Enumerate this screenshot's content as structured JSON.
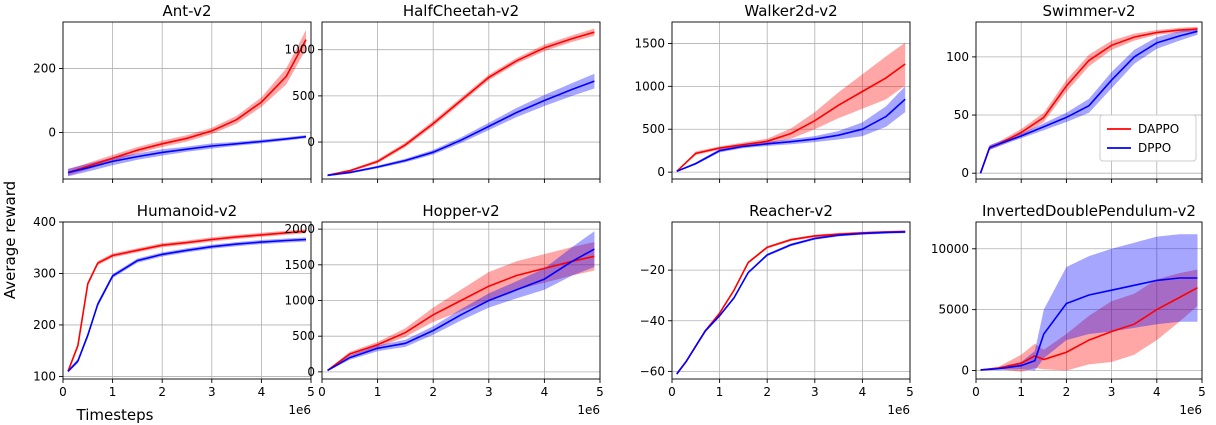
{
  "figure": {
    "ylabel": "Average reward",
    "xlabel": "Timesteps",
    "x_offset_label": "1e6",
    "legend": {
      "placement": "lower-right",
      "panel_index": 3,
      "entries": [
        "DAPPO",
        "DPPO"
      ]
    },
    "colors": {
      "DAPPO": "#ff0000",
      "DPPO": "#0000ff",
      "grid": "#b0b0b0"
    }
  },
  "chart_data": [
    {
      "type": "line",
      "title": "Ant-v2",
      "xlim": [
        0,
        5
      ],
      "ylim": [
        -145,
        345
      ],
      "xticks": [
        0,
        1,
        2,
        3,
        4,
        5
      ],
      "yticks": [
        0,
        200
      ],
      "x": [
        0.1,
        0.5,
        1.0,
        1.5,
        2.0,
        2.5,
        3.0,
        3.5,
        4.0,
        4.5,
        4.9
      ],
      "series": [
        {
          "name": "DAPPO",
          "values": [
            -125,
            -105,
            -80,
            -55,
            -35,
            -18,
            5,
            40,
            95,
            175,
            290
          ],
          "spread": [
            10,
            10,
            10,
            10,
            10,
            10,
            10,
            12,
            15,
            25,
            30
          ]
        },
        {
          "name": "DPPO",
          "values": [
            -125,
            -110,
            -90,
            -75,
            -62,
            -52,
            -42,
            -35,
            -28,
            -20,
            -13
          ],
          "spread": [
            12,
            12,
            12,
            10,
            10,
            8,
            8,
            6,
            6,
            5,
            5
          ]
        }
      ]
    },
    {
      "type": "line",
      "title": "HalfCheetah-v2",
      "xlim": [
        0,
        5
      ],
      "ylim": [
        -400,
        1300
      ],
      "xticks": [
        0,
        1,
        2,
        3,
        4,
        5
      ],
      "yticks": [
        0,
        500,
        1000
      ],
      "x": [
        0.1,
        0.5,
        1.0,
        1.5,
        2.0,
        2.5,
        3.0,
        3.5,
        4.0,
        4.5,
        4.9
      ],
      "series": [
        {
          "name": "DAPPO",
          "values": [
            -360,
            -310,
            -210,
            -30,
            200,
            450,
            700,
            880,
            1020,
            1120,
            1190
          ],
          "spread": [
            10,
            12,
            20,
            25,
            30,
            30,
            30,
            30,
            35,
            35,
            40
          ]
        },
        {
          "name": "DPPO",
          "values": [
            -360,
            -330,
            -270,
            -200,
            -110,
            20,
            170,
            320,
            450,
            570,
            660
          ],
          "spread": [
            10,
            12,
            15,
            20,
            25,
            30,
            40,
            50,
            60,
            70,
            80
          ]
        }
      ]
    },
    {
      "type": "line",
      "title": "Walker2d-v2",
      "xlim": [
        0,
        5
      ],
      "ylim": [
        -80,
        1750
      ],
      "xticks": [
        0,
        1,
        2,
        3,
        4,
        5
      ],
      "yticks": [
        0,
        500,
        1000,
        1500
      ],
      "x": [
        0.1,
        0.5,
        1.0,
        1.5,
        2.0,
        2.5,
        3.0,
        3.5,
        4.0,
        4.5,
        4.9
      ],
      "series": [
        {
          "name": "DAPPO",
          "values": [
            10,
            220,
            280,
            320,
            360,
            450,
            600,
            780,
            940,
            1100,
            1260
          ],
          "spread": [
            5,
            20,
            20,
            25,
            30,
            60,
            100,
            150,
            200,
            250,
            250
          ]
        },
        {
          "name": "DPPO",
          "values": [
            10,
            100,
            250,
            300,
            330,
            355,
            385,
            430,
            500,
            650,
            850
          ],
          "spread": [
            5,
            15,
            20,
            20,
            25,
            30,
            35,
            50,
            80,
            120,
            150
          ]
        }
      ]
    },
    {
      "type": "line",
      "title": "Swimmer-v2",
      "xlim": [
        0,
        5
      ],
      "ylim": [
        -5,
        130
      ],
      "xticks": [
        0,
        1,
        2,
        3,
        4,
        5
      ],
      "yticks": [
        0,
        50,
        100
      ],
      "x": [
        0.1,
        0.3,
        0.5,
        1.0,
        1.5,
        2.0,
        2.5,
        3.0,
        3.5,
        4.0,
        4.5,
        4.9
      ],
      "series": [
        {
          "name": "DAPPO",
          "values": [
            0,
            22,
            25,
            35,
            48,
            75,
            97,
            110,
            117,
            121,
            123,
            124
          ],
          "spread": [
            1,
            2,
            2,
            3,
            4,
            5,
            5,
            4,
            3,
            2,
            2,
            2
          ]
        },
        {
          "name": "DPPO",
          "values": [
            0,
            22,
            25,
            32,
            40,
            48,
            58,
            80,
            100,
            112,
            118,
            122
          ],
          "spread": [
            1,
            2,
            2,
            2,
            3,
            4,
            6,
            7,
            6,
            5,
            4,
            3
          ]
        }
      ]
    },
    {
      "type": "line",
      "title": "Humanoid-v2",
      "xlim": [
        0,
        5
      ],
      "ylim": [
        95,
        400
      ],
      "xticks": [
        0,
        1,
        2,
        3,
        4,
        5
      ],
      "yticks": [
        100,
        200,
        300,
        400
      ],
      "x": [
        0.1,
        0.3,
        0.5,
        0.7,
        1.0,
        1.5,
        2.0,
        2.5,
        3.0,
        3.5,
        4.0,
        4.5,
        4.9
      ],
      "series": [
        {
          "name": "DAPPO",
          "values": [
            110,
            160,
            280,
            320,
            335,
            345,
            355,
            360,
            366,
            371,
            375,
            379,
            382
          ],
          "spread": [
            3,
            4,
            4,
            4,
            4,
            4,
            4,
            4,
            4,
            4,
            4,
            4,
            4
          ]
        },
        {
          "name": "DPPO",
          "values": [
            110,
            130,
            180,
            240,
            295,
            325,
            337,
            345,
            352,
            357,
            361,
            364,
            366
          ],
          "spread": [
            3,
            4,
            5,
            5,
            4,
            4,
            4,
            4,
            4,
            4,
            4,
            4,
            4
          ]
        }
      ]
    },
    {
      "type": "line",
      "title": "Hopper-v2",
      "xlim": [
        0,
        5
      ],
      "ylim": [
        -100,
        2100
      ],
      "xticks": [
        0,
        1,
        2,
        3,
        4,
        5
      ],
      "yticks": [
        0,
        500,
        1000,
        1500,
        2000
      ],
      "x": [
        0.1,
        0.5,
        1.0,
        1.5,
        2.0,
        2.5,
        3.0,
        3.5,
        4.0,
        4.5,
        4.9
      ],
      "series": [
        {
          "name": "DAPPO",
          "values": [
            20,
            250,
            380,
            550,
            800,
            1000,
            1200,
            1350,
            1450,
            1550,
            1620
          ],
          "spread": [
            10,
            30,
            40,
            60,
            100,
            150,
            200,
            200,
            200,
            200,
            200
          ]
        },
        {
          "name": "DPPO",
          "values": [
            20,
            200,
            330,
            400,
            580,
            800,
            1000,
            1150,
            1300,
            1550,
            1720
          ],
          "spread": [
            10,
            30,
            40,
            50,
            60,
            80,
            100,
            120,
            150,
            200,
            250
          ]
        }
      ]
    },
    {
      "type": "line",
      "title": "Reacher-v2",
      "xlim": [
        0,
        5
      ],
      "ylim": [
        -63,
        -1
      ],
      "xticks": [
        0,
        1,
        2,
        3,
        4,
        5
      ],
      "yticks": [
        -60,
        -40,
        -20
      ],
      "x": [
        0.1,
        0.3,
        0.5,
        0.7,
        1.0,
        1.3,
        1.6,
        2.0,
        2.5,
        3.0,
        3.5,
        4.0,
        4.5,
        4.9
      ],
      "series": [
        {
          "name": "DAPPO",
          "values": [
            -61,
            -56,
            -50,
            -44,
            -37,
            -28,
            -17,
            -11,
            -8,
            -6.5,
            -5.8,
            -5.3,
            -5,
            -4.8
          ],
          "spread": [
            0.5,
            0.5,
            0.5,
            0.5,
            0.5,
            0.5,
            0.5,
            0.5,
            0.5,
            0.5,
            0.5,
            0.5,
            0.5,
            0.5
          ]
        },
        {
          "name": "DPPO",
          "values": [
            -61,
            -56,
            -50,
            -44,
            -38,
            -31,
            -21,
            -14,
            -10,
            -7.5,
            -6.2,
            -5.5,
            -5.1,
            -4.9
          ],
          "spread": [
            0.5,
            0.5,
            0.5,
            0.5,
            0.5,
            0.5,
            0.5,
            0.5,
            0.5,
            0.5,
            0.5,
            0.5,
            0.5,
            0.5
          ]
        }
      ]
    },
    {
      "type": "line",
      "title": "InvertedDoublePendulum-v2",
      "xlim": [
        0,
        5
      ],
      "ylim": [
        -700,
        12200
      ],
      "xticks": [
        0,
        1,
        2,
        3,
        4,
        5
      ],
      "yticks": [
        0,
        5000,
        10000
      ],
      "x": [
        0.1,
        0.5,
        1.0,
        1.3,
        1.5,
        2.0,
        2.5,
        3.0,
        3.5,
        4.0,
        4.5,
        4.9
      ],
      "series": [
        {
          "name": "DAPPO",
          "values": [
            50,
            200,
            600,
            1200,
            900,
            1500,
            2500,
            3200,
            3800,
            5000,
            6000,
            6800
          ],
          "spread": [
            30,
            100,
            700,
            1000,
            800,
            1500,
            2000,
            2500,
            2500,
            2500,
            2000,
            1500
          ]
        },
        {
          "name": "DPPO",
          "values": [
            50,
            150,
            400,
            800,
            3000,
            5500,
            6200,
            6600,
            7000,
            7400,
            7600,
            7600
          ],
          "spread": [
            30,
            80,
            300,
            800,
            2000,
            3000,
            3200,
            3400,
            3500,
            3600,
            3600,
            3600
          ]
        }
      ]
    }
  ]
}
